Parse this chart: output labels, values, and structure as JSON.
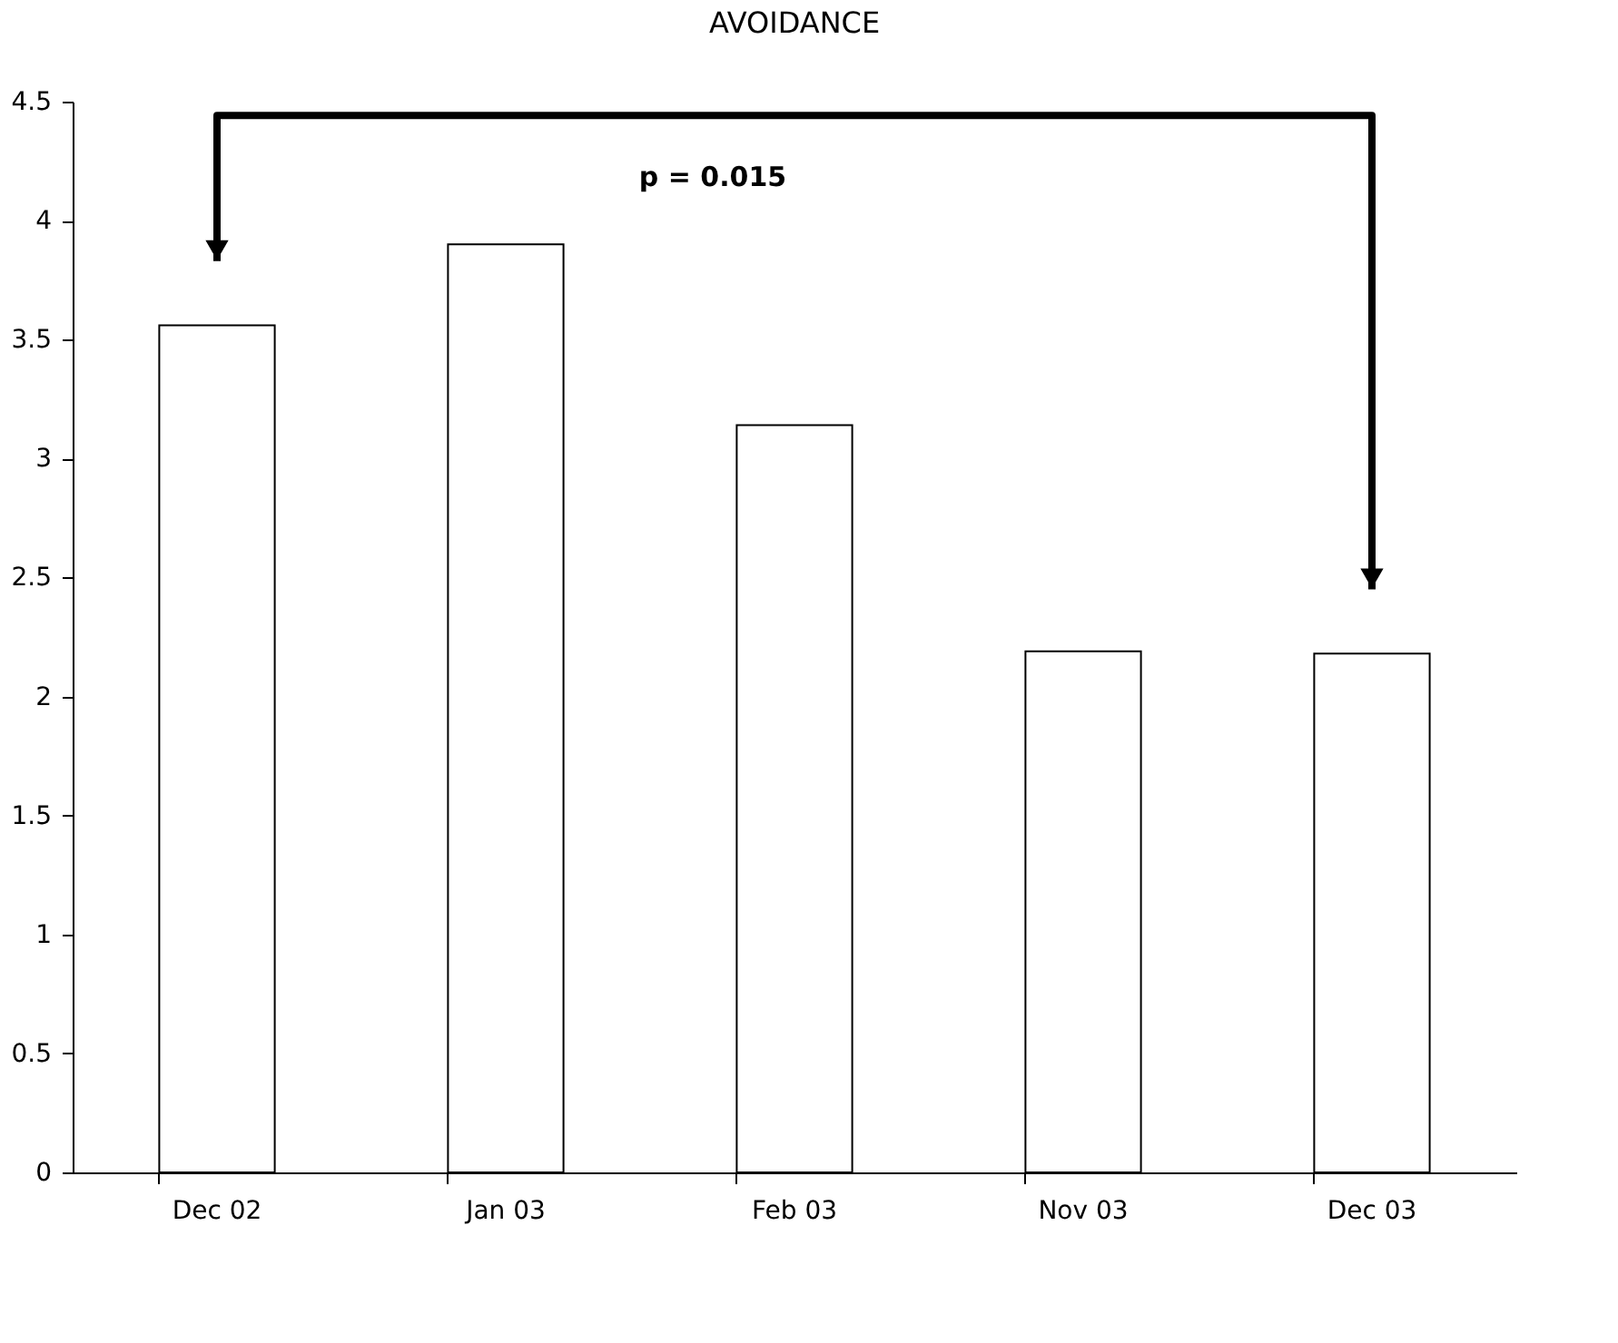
{
  "chart_data": {
    "type": "bar",
    "title": "AVOIDANCE",
    "categories": [
      "Dec 02",
      "Jan 03",
      "Feb 03",
      "Nov 03",
      "Dec 03"
    ],
    "series": [
      {
        "color": "#ffffff",
        "values": [
          3.56,
          3.9,
          3.14,
          2.19,
          2.18
        ]
      }
    ],
    "ylim": [
      0,
      4.5
    ],
    "yticks": [
      0,
      0.5,
      1,
      1.5,
      2,
      2.5,
      3,
      3.5,
      4,
      4.5
    ],
    "annotations": [
      "p = 0.015"
    ],
    "grid": false,
    "legend": false
  }
}
